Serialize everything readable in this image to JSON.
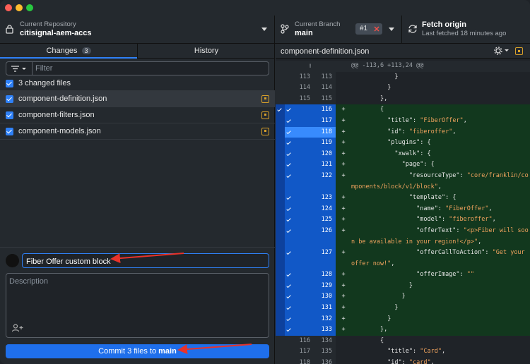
{
  "toolbar": {
    "repo_label": "Current Repository",
    "repo_name": "citisignal-aem-accs",
    "branch_label": "Current Branch",
    "branch_name": "main",
    "pr_badge": "#1",
    "fetch_title": "Fetch origin",
    "fetch_subtitle": "Last fetched 18 minutes ago"
  },
  "tabs": {
    "changes": "Changes",
    "changes_count": "3",
    "history": "History"
  },
  "filter": {
    "placeholder": "Filter"
  },
  "changes": {
    "summary": "3 changed files",
    "files": [
      "component-definition.json",
      "component-filters.json",
      "component-models.json"
    ]
  },
  "commit": {
    "summary": "Fiber Offer custom block",
    "description_placeholder": "Description",
    "button_prefix": "Commit 3 files to",
    "button_branch": "main"
  },
  "diff": {
    "file": "component-definition.json",
    "hunk": "@@ -113,6 +113,24 @@",
    "lines": [
      {
        "old": "113",
        "new": "113",
        "text": "            }"
      },
      {
        "old": "114",
        "new": "114",
        "text": "          }"
      },
      {
        "old": "115",
        "new": "115",
        "text": "        },"
      },
      {
        "old": null,
        "new": "116",
        "marker": "+",
        "text": "        {"
      },
      {
        "old": null,
        "new": "117",
        "marker": "+",
        "text": "          \"title\": \"FiberOffer\","
      },
      {
        "old": null,
        "new": "118",
        "marker": "+",
        "text": "          \"id\": \"fiberoffer\",",
        "selected": true
      },
      {
        "old": null,
        "new": "119",
        "marker": "+",
        "text": "          \"plugins\": {"
      },
      {
        "old": null,
        "new": "120",
        "marker": "+",
        "text": "            \"xwalk\": {"
      },
      {
        "old": null,
        "new": "121",
        "marker": "+",
        "text": "              \"page\": {"
      },
      {
        "old": null,
        "new": "122",
        "marker": "+",
        "text": "                \"resourceType\": \"core/franklin/components/block/v1/block\","
      },
      {
        "old": null,
        "new": "123",
        "marker": "+",
        "text": "                \"template\": {"
      },
      {
        "old": null,
        "new": "124",
        "marker": "+",
        "text": "                  \"name\": \"FiberOffer\","
      },
      {
        "old": null,
        "new": "125",
        "marker": "+",
        "text": "                  \"model\": \"fiberoffer\","
      },
      {
        "old": null,
        "new": "126",
        "marker": "+",
        "text": "                  \"offerText\": \"<p>Fiber will soon be available in your region!</p>\","
      },
      {
        "old": null,
        "new": "127",
        "marker": "+",
        "text": "                  \"offerCallToAction\": \"Get your offer now!\","
      },
      {
        "old": null,
        "new": "128",
        "marker": "+",
        "text": "                  \"offerImage\": \"\""
      },
      {
        "old": null,
        "new": "129",
        "marker": "+",
        "text": "                }"
      },
      {
        "old": null,
        "new": "130",
        "marker": "+",
        "text": "              }"
      },
      {
        "old": null,
        "new": "131",
        "marker": "+",
        "text": "            }"
      },
      {
        "old": null,
        "new": "132",
        "marker": "+",
        "text": "          }"
      },
      {
        "old": null,
        "new": "133",
        "marker": "+",
        "text": "        },"
      },
      {
        "old": "116",
        "new": "134",
        "text": "        {"
      },
      {
        "old": "117",
        "new": "135",
        "text": "          \"title\": \"Card\","
      },
      {
        "old": "118",
        "new": "136",
        "text": "          \"id\": \"card\","
      }
    ]
  }
}
